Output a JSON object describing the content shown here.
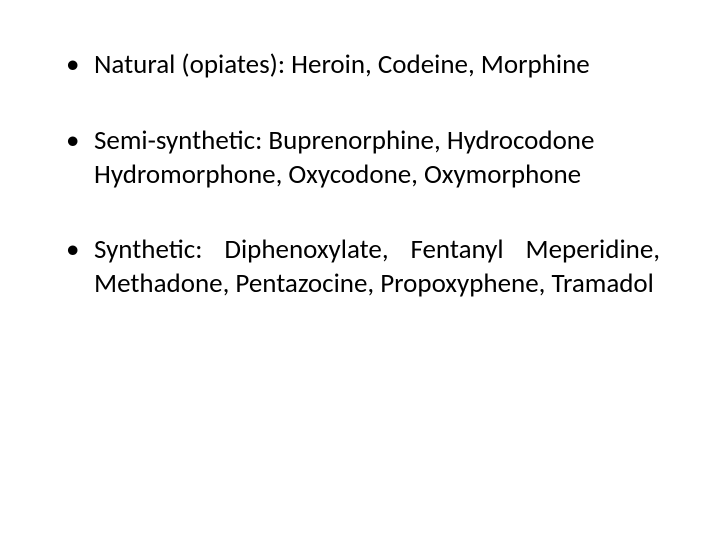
{
  "slide": {
    "background_color": "#ffffff",
    "text_color": "#000000",
    "font_family": "Calibri",
    "font_size_pt": 20,
    "bullets": [
      {
        "text": "Natural (opiates): Heroin, Codeine, Morphine",
        "justify": false
      },
      {
        "text": "Semi-synthetic: Buprenorphine, Hydrocodone Hydromorphone, Oxycodone, Oxymorphone",
        "justify": false
      },
      {
        "text": "Synthetic: Diphenoxylate, Fentanyl Meperidine, Methadone, Pentazocine, Propoxyphene, Tramadol",
        "justify": true
      }
    ]
  }
}
